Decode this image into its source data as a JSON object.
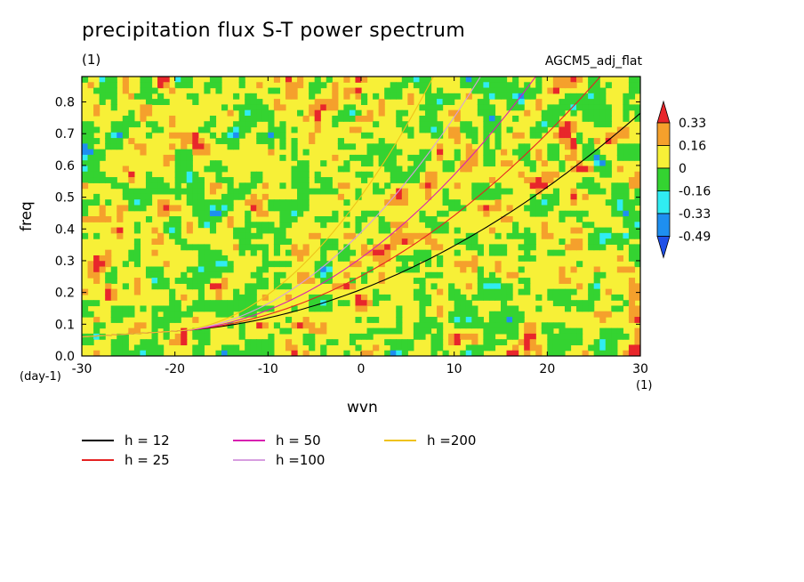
{
  "chart_data": {
    "type": "heatmap",
    "title": "precipitation flux S-T power spectrum",
    "subtitle": "(1)",
    "model_label": "AGCM5_adj_flat",
    "xlabel": "wvn",
    "ylabel": "freq",
    "x_unit": "(1)",
    "y_unit": "(day-1)",
    "xlim": [
      -30,
      30
    ],
    "ylim": [
      0,
      0.88
    ],
    "x_ticks": [
      "-30",
      "-20",
      "-10",
      "0",
      "10",
      "20",
      "30"
    ],
    "y_ticks": [
      "0.0",
      "0.1",
      "0.2",
      "0.3",
      "0.4",
      "0.5",
      "0.6",
      "0.7",
      "0.8"
    ],
    "colorbar": {
      "labels": [
        "0.33",
        "0.16",
        "0",
        "-0.16",
        "-0.33",
        "-0.49"
      ],
      "colors": [
        "#e8262b",
        "#f5a02c",
        "#f7f037",
        "#34d331",
        "#30ecf2",
        "#1e8ff0",
        "#1f50e8"
      ]
    },
    "dispersion_curves": [
      {
        "name": "h = 12",
        "h": 12,
        "color": "#000000"
      },
      {
        "name": "h = 25",
        "h": 25,
        "color": "#e52222"
      },
      {
        "name": "h = 50",
        "h": 50,
        "color": "#d81fb0"
      },
      {
        "name": "h =100",
        "h": 100,
        "color": "#d79ee0"
      },
      {
        "name": "h =200",
        "h": 200,
        "color": "#efc21a"
      }
    ]
  }
}
